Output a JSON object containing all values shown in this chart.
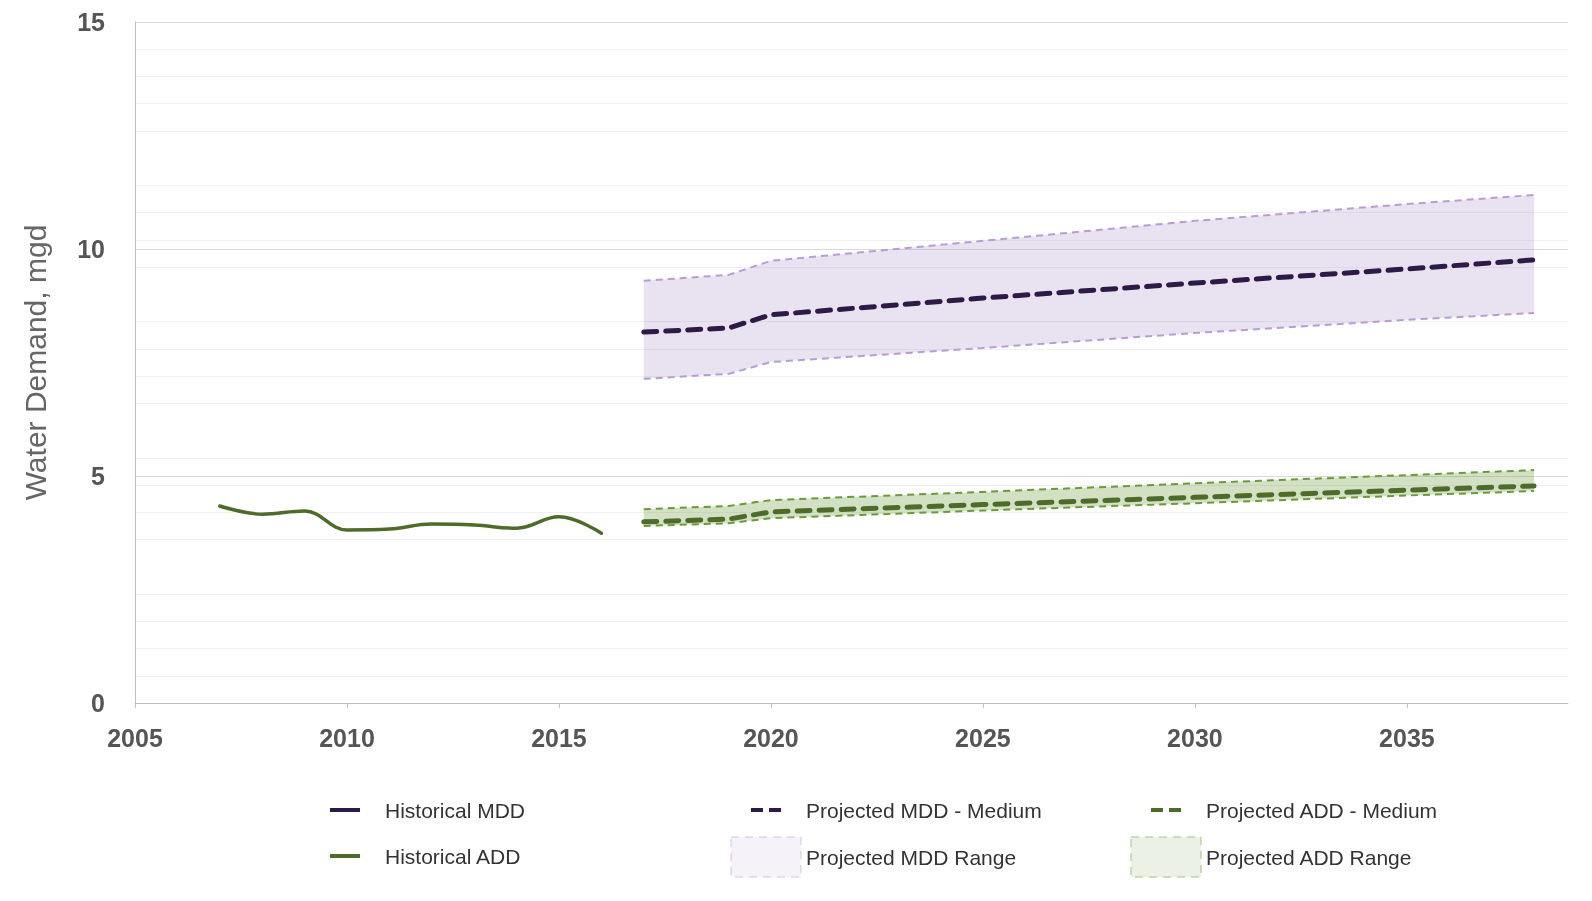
{
  "chart_data": {
    "type": "line",
    "ylabel": "Water Demand, mgd",
    "xlim": [
      2005,
      2038.8
    ],
    "xticks": [
      2005,
      2010,
      2015,
      2020,
      2025,
      2030,
      2035
    ],
    "ylim": [
      0,
      15
    ],
    "yticks": [
      0,
      5,
      10,
      15
    ],
    "grid": "y",
    "legend": "bottom",
    "line_style": "solid",
    "marker": "none",
    "series": [
      {
        "name": "Historical MDD",
        "color": "#2e1a47"
      },
      {
        "name": "Historical ADD",
        "color": "#4e6b2a",
        "x": [
          2007,
          2008,
          2009,
          2010,
          2011,
          2012,
          2013,
          2014,
          2015,
          2016
        ],
        "values": [
          4.34,
          4.16,
          4.23,
          3.81,
          3.83,
          3.94,
          3.92,
          3.85,
          4.1,
          3.74
        ]
      },
      {
        "name": "Projected MDD - Medium",
        "color": "#2e1a47",
        "line_style": "dashed",
        "x": [
          2017,
          2019,
          2020,
          2025,
          2030,
          2035,
          2038
        ],
        "values": [
          8.17,
          8.26,
          8.55,
          8.92,
          9.25,
          9.56,
          9.76
        ],
        "lower": [
          7.14,
          7.25,
          7.51,
          7.82,
          8.15,
          8.44,
          8.59
        ],
        "upper": [
          9.3,
          9.43,
          9.74,
          10.18,
          10.62,
          10.99,
          11.19
        ]
      },
      {
        "name": "Projected MDD Range",
        "type": "area",
        "color": "#b59fd0",
        "line_style": "dashed"
      },
      {
        "color": "#b59fd0",
        "line_style": "dashed",
        "x": [
          2017,
          2019,
          2020,
          2025,
          2030,
          2035,
          2038
        ],
        "values": [
          7.14,
          7.25,
          7.51,
          7.82,
          8.15,
          8.44,
          8.59
        ]
      },
      {
        "color": "#b59fd0",
        "line_style": "dashed",
        "x": [
          2017,
          2019,
          2020,
          2025,
          2030,
          2035,
          2038
        ],
        "values": [
          9.3,
          9.43,
          9.74,
          10.18,
          10.62,
          10.99,
          11.19
        ]
      },
      {
        "name": "Projected ADD - Medium",
        "color": "#4e6b2a",
        "line_style": "dashed",
        "x": [
          2017,
          2019,
          2020,
          2025,
          2030,
          2035,
          2038
        ],
        "values": [
          3.99,
          4.05,
          4.21,
          4.37,
          4.53,
          4.69,
          4.78
        ],
        "lower": [
          3.9,
          3.96,
          4.07,
          4.24,
          4.4,
          4.57,
          4.67
        ],
        "upper": [
          4.27,
          4.34,
          4.47,
          4.65,
          4.84,
          5.02,
          5.13
        ]
      },
      {
        "name": "Projected ADD Range",
        "type": "area",
        "color": "#6a9a3a",
        "line_style": "dashed"
      },
      {
        "color": "#6a9a3a",
        "line_style": "dashed",
        "x": [
          2017,
          2019,
          2020,
          2025,
          2030,
          2035,
          2038
        ],
        "values": [
          3.9,
          3.96,
          4.07,
          4.24,
          4.4,
          4.57,
          4.67
        ]
      },
      {
        "color": "#6a9a3a",
        "line_style": "dashed",
        "x": [
          2017,
          2019,
          2020,
          2025,
          2030,
          2035,
          2038
        ],
        "values": [
          4.27,
          4.34,
          4.47,
          4.65,
          4.84,
          5.02,
          5.13
        ]
      }
    ]
  }
}
